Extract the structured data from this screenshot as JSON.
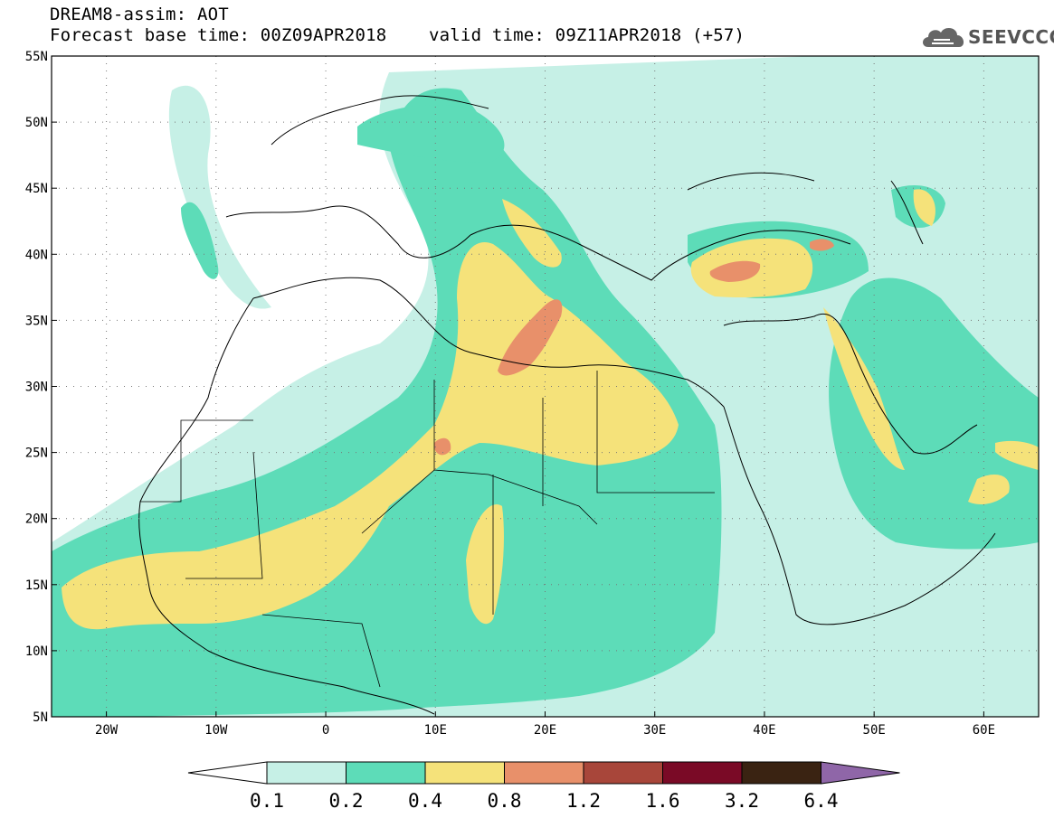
{
  "title": {
    "line1": "DREAM8-assim: AOT",
    "base_label": "Forecast base time: 00Z09APR2018",
    "valid_label": "valid time: 09Z11APR2018 (+57)"
  },
  "logo": {
    "text": "SEEVCCC",
    "icon": "cloud-icon"
  },
  "map": {
    "lon_range": [
      -25,
      65
    ],
    "lat_range": [
      5,
      55
    ],
    "lon_ticks": [
      {
        "value": -20,
        "label": "20W"
      },
      {
        "value": -10,
        "label": "10W"
      },
      {
        "value": 0,
        "label": "0"
      },
      {
        "value": 10,
        "label": "10E"
      },
      {
        "value": 20,
        "label": "20E"
      },
      {
        "value": 30,
        "label": "30E"
      },
      {
        "value": 40,
        "label": "40E"
      },
      {
        "value": 50,
        "label": "50E"
      },
      {
        "value": 60,
        "label": "60E"
      }
    ],
    "lat_ticks": [
      {
        "value": 55,
        "label": "55N"
      },
      {
        "value": 50,
        "label": "50N"
      },
      {
        "value": 45,
        "label": "45N"
      },
      {
        "value": 40,
        "label": "40N"
      },
      {
        "value": 35,
        "label": "35N"
      },
      {
        "value": 30,
        "label": "30N"
      },
      {
        "value": 25,
        "label": "25N"
      },
      {
        "value": 20,
        "label": "20N"
      },
      {
        "value": 15,
        "label": "15N"
      },
      {
        "value": 10,
        "label": "10N"
      },
      {
        "value": 5,
        "label": "5N"
      }
    ],
    "grid": true
  },
  "colorbar": {
    "colors": [
      "#c6f0e6",
      "#5ddcb8",
      "#f5e27a",
      "#e8906a",
      "#a8463a",
      "#7a0a26",
      "#3a2312",
      "#8f66a8"
    ],
    "labels": [
      "0.1",
      "0.2",
      "0.4",
      "0.8",
      "1.2",
      "1.6",
      "3.2",
      "6.4"
    ]
  }
}
